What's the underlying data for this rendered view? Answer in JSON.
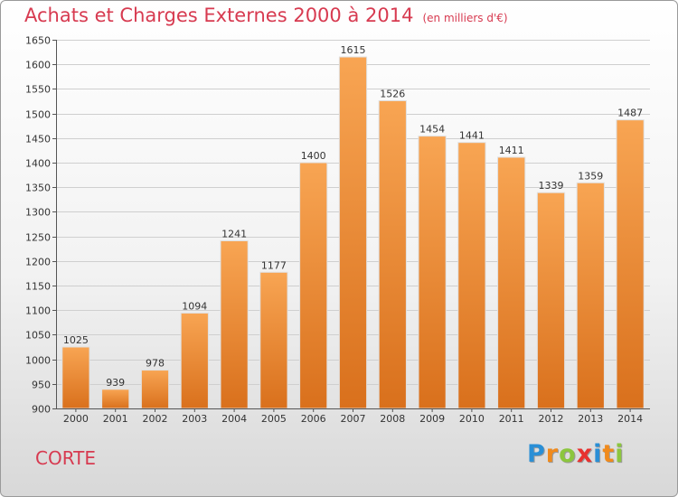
{
  "title": "Achats et Charges Externes 2000 à 2014",
  "subtitle": "(en milliers d'€)",
  "city": "CORTE",
  "logo": {
    "text": "Proxiti",
    "letters": [
      {
        "ch": "P",
        "color": "#2a8fd6"
      },
      {
        "ch": "r",
        "color": "#f08a1c"
      },
      {
        "ch": "o",
        "color": "#8cc63e"
      },
      {
        "ch": "x",
        "color": "#e8312f"
      },
      {
        "ch": "i",
        "color": "#2a8fd6"
      },
      {
        "ch": "t",
        "color": "#f08a1c"
      },
      {
        "ch": "i",
        "color": "#8cc63e"
      }
    ]
  },
  "colors": {
    "accent": "#d73a50",
    "bar_top": "#f8a553",
    "bar_bottom": "#d9701c"
  },
  "chart_data": {
    "type": "bar",
    "title": "Achats et Charges Externes 2000 à 2014",
    "xlabel": "",
    "ylabel": "en milliers d'€",
    "categories": [
      "2000",
      "2001",
      "2002",
      "2003",
      "2004",
      "2005",
      "2006",
      "2007",
      "2008",
      "2009",
      "2010",
      "2011",
      "2012",
      "2013",
      "2014"
    ],
    "values": [
      1025,
      939,
      978,
      1094,
      1241,
      1177,
      1400,
      1615,
      1526,
      1454,
      1441,
      1411,
      1339,
      1359,
      1487
    ],
    "ylim": [
      900,
      1650
    ],
    "yticks": [
      900,
      950,
      1000,
      1050,
      1100,
      1150,
      1200,
      1250,
      1300,
      1350,
      1400,
      1450,
      1500,
      1550,
      1600,
      1650
    ],
    "grid": true
  }
}
